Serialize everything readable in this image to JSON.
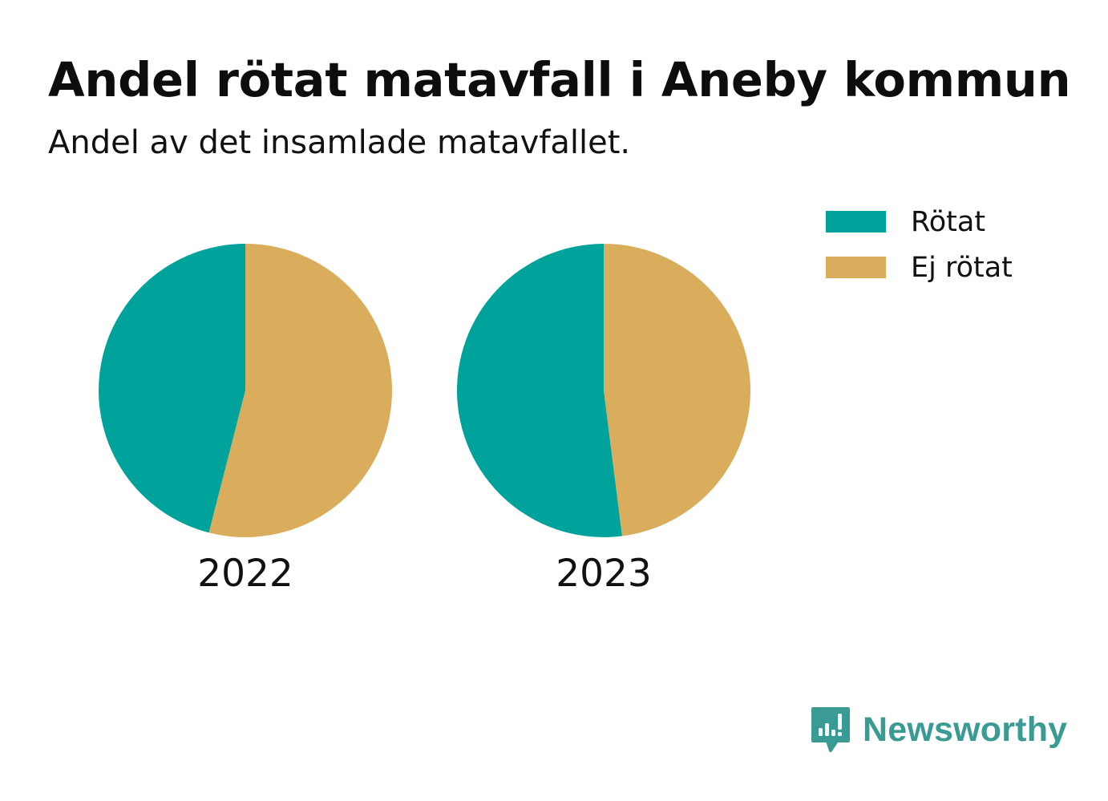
{
  "title": "Andel rötat matavfall i Aneby kommun",
  "subtitle": "Andel av det insamlade matavfallet.",
  "colors": {
    "rotat": "#00a39b",
    "ej_rotat": "#d9ad5b",
    "brand": "#3a9a94"
  },
  "brand": {
    "name": "Newsworthy",
    "icon": "newsworthy-chat-bars-icon"
  },
  "chart_data": {
    "type": "pie",
    "legend_position": "top-right",
    "legend": [
      "Rötat",
      "Ej rötat"
    ],
    "charts": [
      {
        "year": "2022",
        "slices": [
          {
            "name": "Rötat",
            "value": 46
          },
          {
            "name": "Ej rötat",
            "value": 54
          }
        ]
      },
      {
        "year": "2023",
        "slices": [
          {
            "name": "Rötat",
            "value": 52
          },
          {
            "name": "Ej rötat",
            "value": 48
          }
        ]
      }
    ]
  }
}
